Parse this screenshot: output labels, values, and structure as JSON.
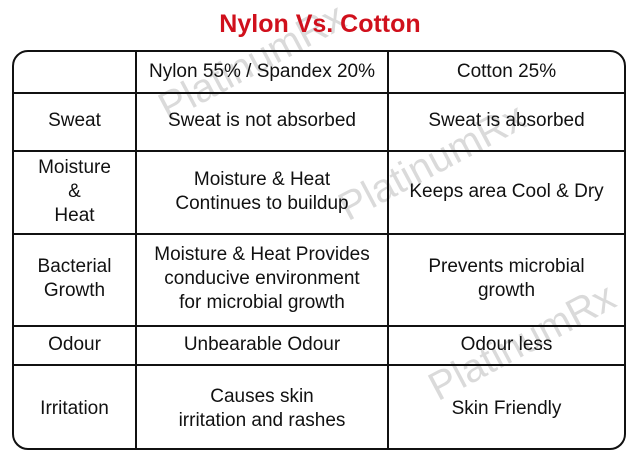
{
  "title": "Nylon Vs. Cotton",
  "watermark": "PlatinumRx",
  "colors": {
    "title": "#d0101c",
    "border": "#111111"
  },
  "table": {
    "headers": [
      "",
      "Nylon 55% / Spandex 20%",
      "Cotton 25%"
    ],
    "rows": [
      {
        "label": "Sweat",
        "nylon": "Sweat is not absorbed",
        "cotton": "Sweat is absorbed"
      },
      {
        "label": "Moisture\n&\nHeat",
        "nylon": "Moisture & Heat\nContinues to buildup",
        "cotton": "Keeps area Cool & Dry"
      },
      {
        "label": "Bacterial\nGrowth",
        "nylon": "Moisture & Heat Provides\nconducive environment\nfor microbial growth",
        "cotton": "Prevents microbial\ngrowth"
      },
      {
        "label": "Odour",
        "nylon": "Unbearable Odour",
        "cotton": "Odour less"
      },
      {
        "label": "Irritation",
        "nylon": "Causes skin\nirritation and rashes",
        "cotton": "Skin Friendly"
      }
    ]
  }
}
